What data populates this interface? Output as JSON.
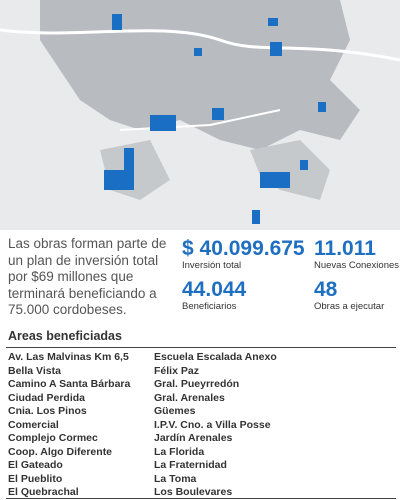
{
  "intro": {
    "lines": [
      "Las obras forman parte de",
      "un plan de inversión total",
      "por $69 millones que",
      "terminará beneficiando a",
      "75.000 cordobeses."
    ]
  },
  "stats": [
    {
      "value": "$ 40.099.675",
      "label": "Inversión total"
    },
    {
      "value": "11.011",
      "label": "Nuevas Conexiones"
    },
    {
      "value": "44.044",
      "label": "Beneficiarios"
    },
    {
      "value": "48",
      "label": "Obras a ejecutar"
    }
  ],
  "areas": {
    "title": "Areas beneficiadas",
    "columns": [
      [
        "Av. Las Malvinas Km 6,5",
        "Bella Vista",
        "Camino A Santa Bárbara",
        "Ciudad Perdida",
        "Cnia. Los Pinos",
        "Comercial",
        "Complejo Cormec",
        "Coop. Algo Diferente",
        "El Gateado",
        "El Pueblito",
        "El Quebrachal"
      ],
      [
        "Escuela Escalada Anexo",
        "Félix Paz",
        "Gral. Pueyrredón",
        "Gral. Arenales",
        "Güemes",
        "I.P.V. Cno. a Villa Posse",
        "Jardín Arenales",
        "La Florida",
        "La Fraternidad",
        "La Toma",
        "Los Boulevares"
      ]
    ]
  }
}
